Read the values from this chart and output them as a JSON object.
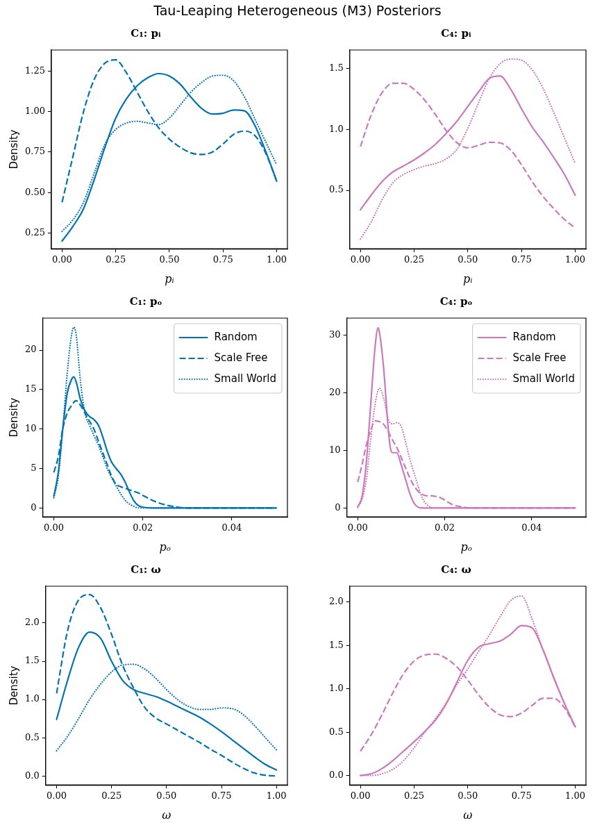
{
  "chart_data": [
    {
      "type": "other",
      "title": "Tau-Leaping Heterogeneous (M3) Posteriors"
    },
    {
      "type": "line",
      "title": "C₁: pᵢ",
      "xlabel": "pᵢ",
      "ylabel": "Density",
      "grid": false,
      "legend": false,
      "xlim": [
        -0.05,
        1.05
      ],
      "xticks": [
        {
          "value": 0,
          "label": "0.00"
        },
        0.25,
        {
          "value": 0.5,
          "label": "0.50"
        },
        0.75,
        {
          "value": 1,
          "label": "1.00"
        }
      ],
      "ylim": [
        0.152,
        1.381
      ],
      "yticks": [
        0.25,
        {
          "value": 0.5,
          "label": "0.50"
        },
        0.75,
        {
          "value": 1,
          "label": "1.00"
        },
        1.25
      ],
      "x": [
        0,
        0.05,
        0.1,
        0.15,
        0.2,
        0.25,
        0.3,
        0.35,
        0.4,
        0.45,
        0.5,
        0.55,
        0.6,
        0.65,
        0.7,
        0.75,
        0.8,
        0.85,
        0.9,
        0.95,
        1
      ],
      "series": [
        {
          "color": "#0173b2",
          "line_style": "solid",
          "values": [
            0.2,
            0.29,
            0.4,
            0.58,
            0.78,
            0.96,
            1.08,
            1.16,
            1.21,
            1.235,
            1.22,
            1.17,
            1.09,
            1.02,
            0.985,
            0.99,
            1.01,
            1.005,
            0.91,
            0.75,
            0.57
          ]
        },
        {
          "color": "#0173b2",
          "line_style": "dashed",
          "values": [
            0.44,
            0.72,
            1,
            1.2,
            1.3,
            1.32,
            1.24,
            1.12,
            1,
            0.9,
            0.83,
            0.78,
            0.745,
            0.735,
            0.75,
            0.8,
            0.86,
            0.88,
            0.85,
            0.74,
            0.57
          ]
        },
        {
          "color": "#0173b2",
          "line_style": "dotted",
          "values": [
            0.26,
            0.33,
            0.44,
            0.62,
            0.8,
            0.89,
            0.93,
            0.94,
            0.93,
            0.92,
            0.96,
            1.04,
            1.12,
            1.18,
            1.22,
            1.225,
            1.19,
            1.09,
            0.95,
            0.81,
            0.67
          ]
        }
      ]
    },
    {
      "type": "line",
      "title": "C₄: pᵢ",
      "xlabel": "pᵢ",
      "grid": false,
      "legend": false,
      "xlim": [
        -0.05,
        1.05
      ],
      "xticks": [
        {
          "value": 0,
          "label": "0.00"
        },
        0.25,
        {
          "value": 0.5,
          "label": "0.50"
        },
        0.75,
        {
          "value": 1,
          "label": "1.00"
        }
      ],
      "ylim": [
        0.019,
        1.654
      ],
      "yticks": [
        0.5,
        {
          "value": 1,
          "label": "1.0"
        },
        1.5
      ],
      "x": [
        0,
        0.05,
        0.1,
        0.15,
        0.2,
        0.25,
        0.3,
        0.35,
        0.4,
        0.45,
        0.5,
        0.55,
        0.6,
        0.65,
        0.7,
        0.75,
        0.8,
        0.85,
        0.9,
        0.95,
        1
      ],
      "series": [
        {
          "color": "#cc78bc",
          "line_style": "solid",
          "values": [
            0.34,
            0.46,
            0.57,
            0.65,
            0.7,
            0.75,
            0.81,
            0.88,
            0.97,
            1.07,
            1.19,
            1.31,
            1.42,
            1.44,
            1.33,
            1.17,
            1.02,
            0.9,
            0.77,
            0.63,
            0.46
          ]
        },
        {
          "color": "#cc78bc",
          "line_style": "dashed",
          "values": [
            0.86,
            1.12,
            1.3,
            1.38,
            1.38,
            1.33,
            1.24,
            1.12,
            0.99,
            0.89,
            0.85,
            0.87,
            0.895,
            0.89,
            0.83,
            0.71,
            0.57,
            0.45,
            0.35,
            0.26,
            0.19
          ]
        },
        {
          "color": "#cc78bc",
          "line_style": "dotted",
          "values": [
            0.1,
            0.24,
            0.42,
            0.56,
            0.63,
            0.67,
            0.7,
            0.72,
            0.76,
            0.84,
            1.01,
            1.22,
            1.42,
            1.54,
            1.58,
            1.57,
            1.49,
            1.34,
            1.14,
            0.93,
            0.72
          ]
        }
      ]
    },
    {
      "type": "line",
      "title": "C₁: pₒ",
      "xlabel": "pₒ",
      "ylabel": "Density",
      "grid": false,
      "legend": "top right",
      "xlim": [
        -0.0025,
        0.0525
      ],
      "xticks": [
        {
          "value": 0,
          "label": "0.00"
        },
        0.02,
        0.04
      ],
      "ylim": [
        -1.13,
        24.05
      ],
      "yticks": [
        0,
        5,
        10,
        15,
        20
      ],
      "series": [
        {
          "name": "Random",
          "color": "#0173b2",
          "line_style": "solid",
          "x": [
            0,
            0.001,
            0.002,
            0.003,
            0.004,
            0.0045,
            0.005,
            0.006,
            0.007,
            0.008,
            0.009,
            0.01,
            0.011,
            0.012,
            0.013,
            0.014,
            0.015,
            0.016,
            0.017,
            0.018,
            0.019,
            0.02,
            0.022,
            0.025,
            0.03,
            0.04,
            0.05
          ],
          "values": [
            1.5,
            4.5,
            10,
            14.5,
            16.3,
            16.6,
            16,
            13.7,
            12.3,
            11.6,
            11.2,
            10.5,
            9,
            7.2,
            5.8,
            5,
            4.3,
            3.3,
            2,
            0.9,
            0.3,
            0.1,
            0,
            0,
            0,
            0,
            0
          ]
        },
        {
          "name": "Scale Free",
          "color": "#0173b2",
          "line_style": "dashed",
          "x": [
            0,
            0.001,
            0.002,
            0.003,
            0.004,
            0.005,
            0.006,
            0.007,
            0.008,
            0.009,
            0.01,
            0.011,
            0.012,
            0.013,
            0.014,
            0.015,
            0.016,
            0.017,
            0.018,
            0.019,
            0.02,
            0.022,
            0.025,
            0.028,
            0.03,
            0.04,
            0.05
          ],
          "values": [
            4.5,
            6.5,
            10,
            12,
            13,
            13.6,
            13,
            12,
            11,
            10,
            8.5,
            7,
            5.5,
            4,
            3,
            2.7,
            2.5,
            2.3,
            2.1,
            1.9,
            1.6,
            1,
            0.4,
            0.1,
            0,
            0,
            0
          ]
        },
        {
          "name": "Small World",
          "color": "#0173b2",
          "line_style": "dotted",
          "x": [
            0,
            0.001,
            0.002,
            0.003,
            0.004,
            0.0045,
            0.005,
            0.006,
            0.007,
            0.008,
            0.009,
            0.01,
            0.011,
            0.012,
            0.013,
            0.014,
            0.015,
            0.016,
            0.017,
            0.018,
            0.019,
            0.02,
            0.022,
            0.025,
            0.03,
            0.04,
            0.05
          ],
          "values": [
            1.3,
            4,
            10,
            17,
            22,
            22.9,
            22,
            16,
            12,
            10.5,
            9.2,
            8,
            6.5,
            5,
            3.8,
            2.8,
            1.8,
            1,
            0.5,
            0.2,
            0,
            0,
            0,
            0,
            0,
            0,
            0
          ]
        }
      ]
    },
    {
      "type": "line",
      "title": "C₄: pₒ",
      "xlabel": "pₒ",
      "grid": false,
      "legend": "top right",
      "xlim": [
        -0.0025,
        0.0525
      ],
      "xticks": [
        {
          "value": 0,
          "label": "0.00"
        },
        0.02,
        0.04
      ],
      "ylim": [
        -1.55,
        32.97
      ],
      "yticks": [
        0,
        10,
        20,
        30
      ],
      "series": [
        {
          "name": "Random",
          "color": "#cc78bc",
          "line_style": "solid",
          "x": [
            0,
            0.001,
            0.002,
            0.003,
            0.004,
            0.0047,
            0.005,
            0.006,
            0.007,
            0.0075,
            0.008,
            0.009,
            0.01,
            0.011,
            0.012,
            0.013,
            0.014,
            0.015,
            0.02,
            0.03,
            0.05
          ],
          "values": [
            0.2,
            2,
            8,
            18,
            28,
            31.3,
            30.5,
            24,
            14,
            10.5,
            9.6,
            9.6,
            7.5,
            5,
            2.5,
            0.8,
            0.1,
            0,
            0,
            0,
            0
          ]
        },
        {
          "name": "Scale Free",
          "color": "#cc78bc",
          "line_style": "dashed",
          "x": [
            0,
            0.001,
            0.002,
            0.003,
            0.004,
            0.005,
            0.006,
            0.007,
            0.008,
            0.009,
            0.01,
            0.011,
            0.012,
            0.013,
            0.014,
            0.015,
            0.016,
            0.017,
            0.018,
            0.019,
            0.02,
            0.021,
            0.022,
            0.024,
            0.026,
            0.03,
            0.05
          ],
          "values": [
            4.5,
            7.5,
            11,
            13.5,
            15.1,
            15,
            14.5,
            13.3,
            11.8,
            10.5,
            8.8,
            7,
            5.2,
            3.8,
            2.8,
            2.3,
            2.1,
            2.1,
            2,
            1.8,
            1.4,
            0.9,
            0.5,
            0.2,
            0,
            0,
            0
          ]
        },
        {
          "name": "Small World",
          "color": "#cc78bc",
          "line_style": "dotted",
          "x": [
            0,
            0.001,
            0.002,
            0.003,
            0.004,
            0.005,
            0.006,
            0.007,
            0.008,
            0.009,
            0.01,
            0.011,
            0.012,
            0.013,
            0.014,
            0.015,
            0.016,
            0.017,
            0.018,
            0.02,
            0.03,
            0.05
          ],
          "values": [
            0.1,
            1.5,
            5,
            12,
            18,
            20.8,
            19,
            15.5,
            14.6,
            14.8,
            14.2,
            11.5,
            8.5,
            6,
            3.5,
            1.5,
            0.5,
            0.1,
            0,
            0,
            0,
            0
          ]
        }
      ]
    },
    {
      "type": "line",
      "title": "C₁: ω",
      "xlabel": "ω",
      "ylabel": "Density",
      "grid": false,
      "legend": false,
      "xlim": [
        -0.05,
        1.05
      ],
      "xticks": [
        {
          "value": 0,
          "label": "0.00"
        },
        0.25,
        {
          "value": 0.5,
          "label": "0.50"
        },
        0.75,
        {
          "value": 1,
          "label": "1.00"
        }
      ],
      "ylim": [
        -0.117,
        2.48
      ],
      "yticks": [
        {
          "value": 0,
          "label": "0.0"
        },
        0.5,
        {
          "value": 1,
          "label": "1.0"
        },
        1.5,
        {
          "value": 2,
          "label": "2.0"
        }
      ],
      "x": [
        0,
        0.05,
        0.1,
        0.15,
        0.2,
        0.25,
        0.3,
        0.35,
        0.4,
        0.45,
        0.5,
        0.55,
        0.6,
        0.65,
        0.7,
        0.75,
        0.8,
        0.85,
        0.9,
        0.95,
        1
      ],
      "series": [
        {
          "color": "#0173b2",
          "line_style": "solid",
          "values": [
            0.74,
            1.25,
            1.68,
            1.88,
            1.8,
            1.5,
            1.25,
            1.13,
            1.08,
            1.04,
            0.98,
            0.91,
            0.84,
            0.77,
            0.68,
            0.58,
            0.47,
            0.36,
            0.25,
            0.15,
            0.08
          ]
        },
        {
          "color": "#0173b2",
          "line_style": "dashed",
          "values": [
            1.08,
            1.9,
            2.3,
            2.37,
            2.2,
            1.85,
            1.45,
            1.15,
            0.9,
            0.76,
            0.68,
            0.6,
            0.52,
            0.44,
            0.35,
            0.27,
            0.18,
            0.1,
            0.04,
            0.01,
            0
          ]
        },
        {
          "color": "#0173b2",
          "line_style": "dotted",
          "values": [
            0.33,
            0.52,
            0.75,
            1,
            1.2,
            1.36,
            1.45,
            1.46,
            1.4,
            1.28,
            1.13,
            1,
            0.91,
            0.87,
            0.87,
            0.89,
            0.88,
            0.8,
            0.66,
            0.5,
            0.34
          ]
        }
      ]
    },
    {
      "type": "line",
      "title": "C₄: ω",
      "xlabel": "ω",
      "grid": false,
      "legend": false,
      "xlim": [
        -0.05,
        1.05
      ],
      "xticks": [
        {
          "value": 0,
          "label": "0.00"
        },
        0.25,
        {
          "value": 0.5,
          "label": "0.50"
        },
        0.75,
        {
          "value": 1,
          "label": "1.00"
        }
      ],
      "ylim": [
        -0.109,
        2.183
      ],
      "yticks": [
        {
          "value": 0,
          "label": "0.0"
        },
        0.5,
        {
          "value": 1,
          "label": "1.0"
        },
        1.5,
        {
          "value": 2,
          "label": "2.0"
        }
      ],
      "x": [
        0,
        0.05,
        0.1,
        0.15,
        0.2,
        0.25,
        0.3,
        0.35,
        0.4,
        0.45,
        0.5,
        0.55,
        0.6,
        0.65,
        0.7,
        0.75,
        0.8,
        0.85,
        0.9,
        0.95,
        1
      ],
      "series": [
        {
          "color": "#cc78bc",
          "line_style": "solid",
          "values": [
            0,
            0.02,
            0.08,
            0.17,
            0.28,
            0.39,
            0.51,
            0.64,
            0.83,
            1.08,
            1.33,
            1.48,
            1.52,
            1.55,
            1.63,
            1.73,
            1.7,
            1.45,
            1.13,
            0.83,
            0.56
          ]
        },
        {
          "color": "#cc78bc",
          "line_style": "dashed",
          "values": [
            0.28,
            0.47,
            0.7,
            0.95,
            1.17,
            1.32,
            1.39,
            1.4,
            1.35,
            1.25,
            1.1,
            0.93,
            0.79,
            0.7,
            0.68,
            0.72,
            0.81,
            0.89,
            0.89,
            0.78,
            0.56
          ]
        },
        {
          "color": "#cc78bc",
          "line_style": "dotted",
          "values": [
            0,
            0,
            0.02,
            0.07,
            0.17,
            0.32,
            0.5,
            0.66,
            0.84,
            1.05,
            1.23,
            1.43,
            1.62,
            1.83,
            2.02,
            2.07,
            1.8,
            1.45,
            1.12,
            0.83,
            0.57
          ]
        }
      ]
    }
  ]
}
